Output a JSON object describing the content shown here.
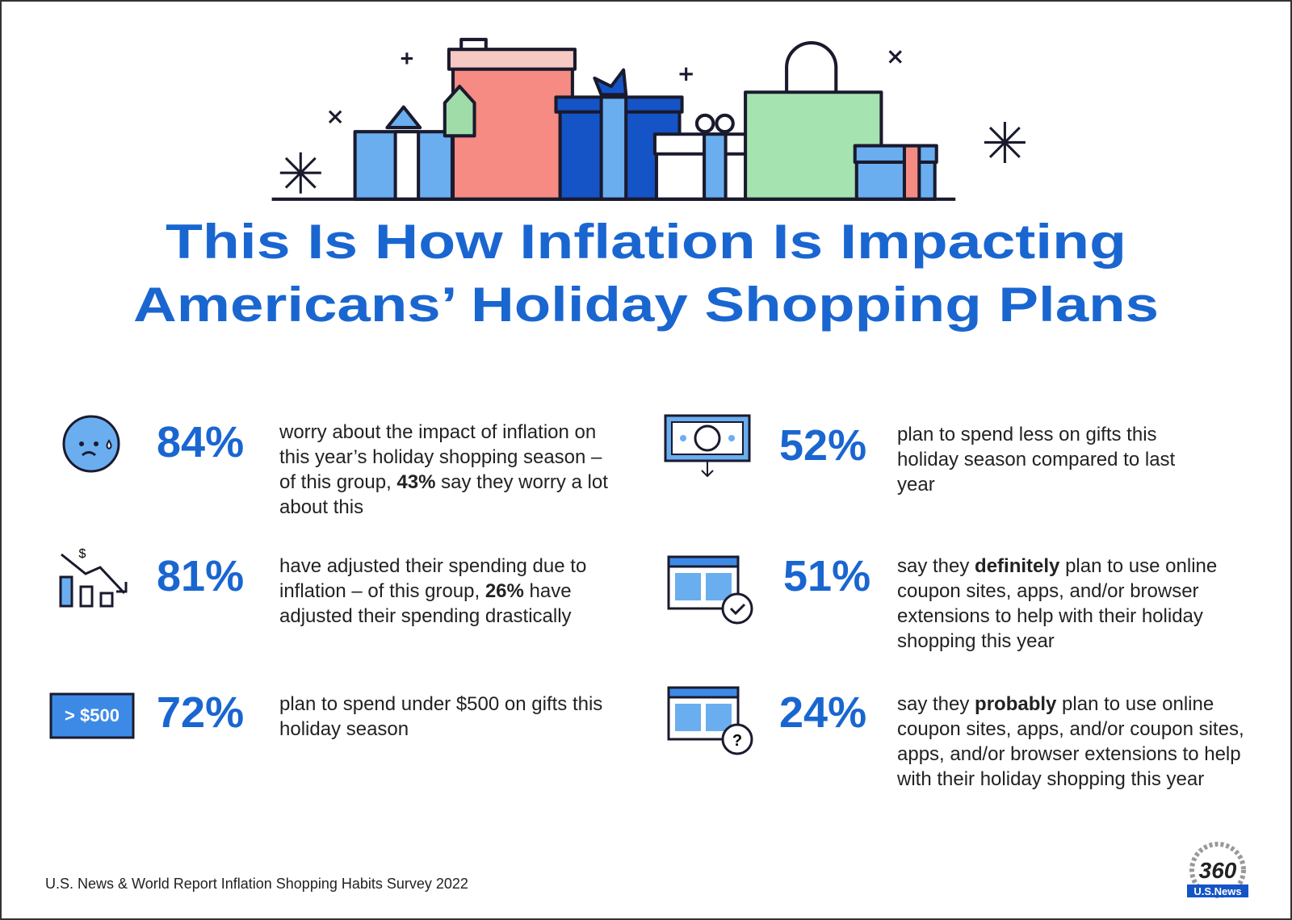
{
  "title": [
    "This Is How Inflation Is Impacting",
    "Americans’ Holiday Shopping Plans"
  ],
  "stats": [
    {
      "percent": "84%",
      "text": "worry about the impact of inflation on this year’s holiday shopping season – of this group, ",
      "strong": "43%",
      "text_after": " say they worry a lot about this"
    },
    {
      "percent": "81%",
      "text": "have adjusted their spending due to inflation – of this group, ",
      "strong": "26%",
      "text_after": " have adjusted their spending drastically"
    },
    {
      "percent": "72%",
      "text": "plan to spend under $500 on gifts this holiday season"
    },
    {
      "percent": "52%",
      "text": "plan to spend less on gifts this holiday season compared to last year"
    },
    {
      "percent": "51%",
      "text": "say they ",
      "strong": "definitely",
      "text_after": " plan to use online coupon sites, apps, and/or browser extensions to help with their holiday shopping this year"
    },
    {
      "percent": "24%",
      "text": "say they ",
      "strong": "probably",
      "text_after": " plan to use online coupon sites, apps, and/or coupon sites, apps, and/or browser extensions to help with their holiday shopping this year"
    }
  ],
  "icon_labels": {
    "dollar": "$",
    "price_tag": "> $500",
    "question": "?"
  },
  "source": "U.S. News & World Report Inflation Shopping Habits Survey 2022",
  "logo": {
    "number": "360",
    "brand": "U.S.News"
  }
}
